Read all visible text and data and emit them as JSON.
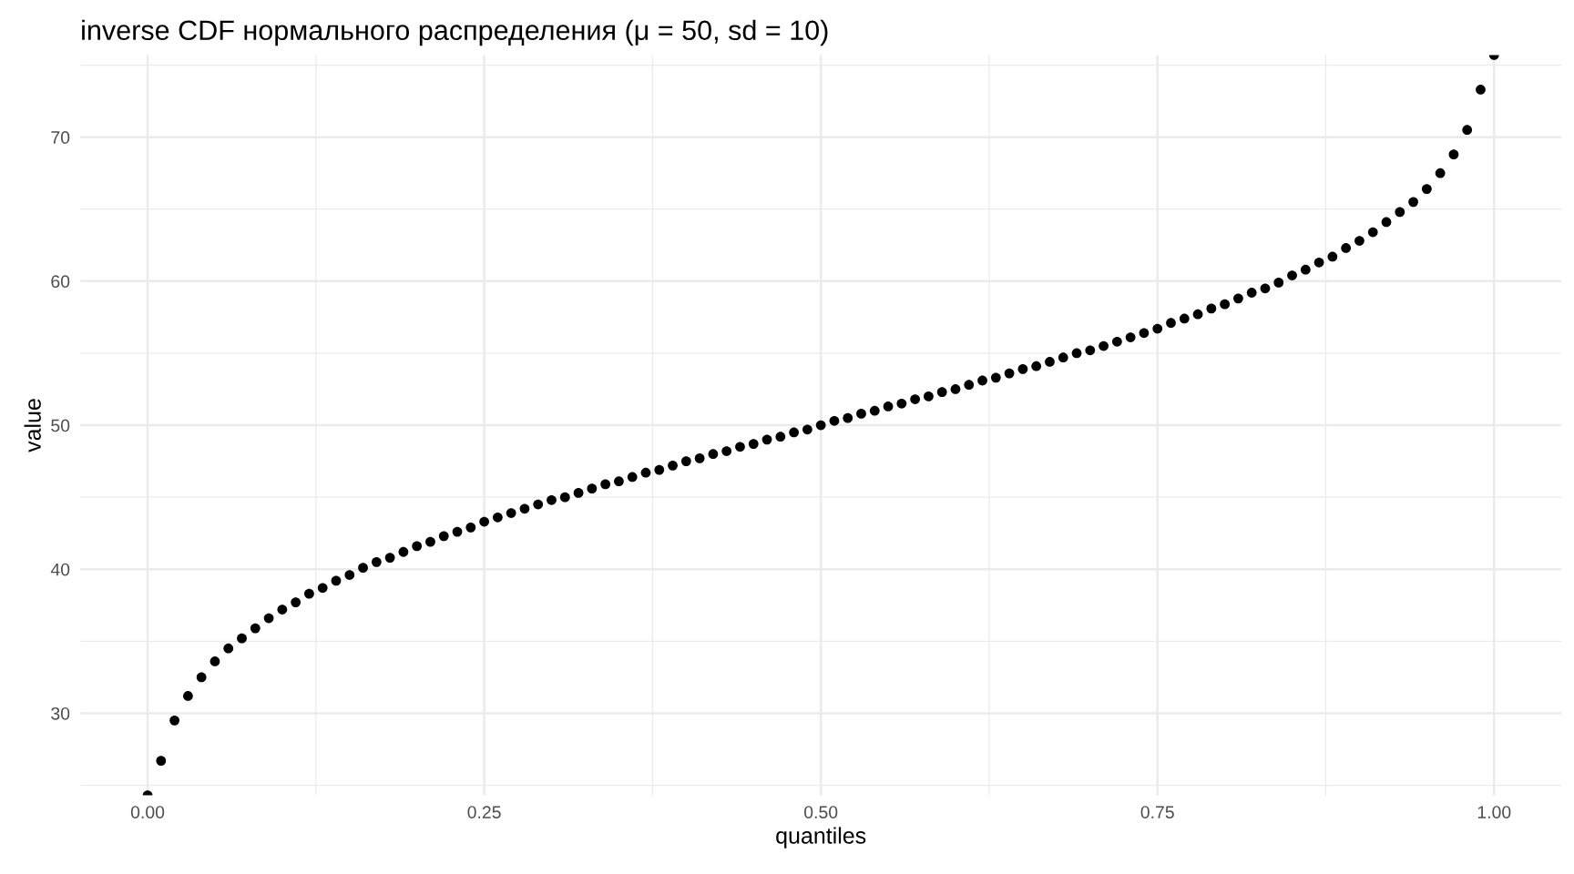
{
  "chart_data": {
    "type": "scatter",
    "title": "inverse CDF нормального распределения (μ = 50, sd = 10)",
    "xlabel": "quantiles",
    "ylabel": "value",
    "x": [
      0,
      0.01,
      0.02,
      0.03,
      0.04,
      0.05,
      0.06,
      0.07,
      0.08,
      0.09,
      0.1,
      0.11,
      0.12,
      0.13,
      0.14,
      0.15,
      0.16,
      0.17,
      0.18,
      0.19,
      0.2,
      0.21,
      0.22,
      0.23,
      0.24,
      0.25,
      0.26,
      0.27,
      0.28,
      0.29,
      0.3,
      0.31,
      0.32,
      0.33,
      0.34,
      0.35,
      0.36,
      0.37,
      0.38,
      0.39,
      0.4,
      0.41,
      0.42,
      0.43,
      0.44,
      0.45,
      0.46,
      0.47,
      0.48,
      0.49,
      0.5,
      0.51,
      0.52,
      0.53,
      0.54,
      0.55,
      0.56,
      0.57,
      0.58,
      0.59,
      0.6,
      0.61,
      0.62,
      0.63,
      0.64,
      0.65,
      0.66,
      0.67,
      0.68,
      0.69,
      0.7,
      0.71,
      0.72,
      0.73,
      0.74,
      0.75,
      0.76,
      0.77,
      0.78,
      0.79,
      0.8,
      0.81,
      0.82,
      0.83,
      0.84,
      0.85,
      0.86,
      0.87,
      0.88,
      0.89,
      0.9,
      0.91,
      0.92,
      0.93,
      0.94,
      0.95,
      0.96,
      0.97,
      0.98,
      0.99,
      1.0
    ],
    "series": [
      {
        "color": "#000000",
        "values": [
          24.3,
          26.7,
          29.5,
          31.2,
          32.5,
          33.6,
          34.5,
          35.2,
          35.9,
          36.6,
          37.2,
          37.7,
          38.3,
          38.7,
          39.2,
          39.6,
          40.1,
          40.5,
          40.8,
          41.2,
          41.6,
          41.9,
          42.3,
          42.6,
          42.9,
          43.3,
          43.6,
          43.9,
          44.2,
          44.5,
          44.8,
          45.0,
          45.3,
          45.6,
          45.9,
          46.1,
          46.4,
          46.7,
          46.9,
          47.2,
          47.5,
          47.7,
          48.0,
          48.2,
          48.5,
          48.7,
          49.0,
          49.2,
          49.5,
          49.7,
          50.0,
          50.3,
          50.5,
          50.8,
          51.0,
          51.3,
          51.5,
          51.8,
          52.0,
          52.3,
          52.5,
          52.8,
          53.1,
          53.3,
          53.6,
          53.9,
          54.1,
          54.4,
          54.7,
          55.0,
          55.2,
          55.5,
          55.8,
          56.1,
          56.4,
          56.7,
          57.1,
          57.4,
          57.7,
          58.1,
          58.4,
          58.8,
          59.2,
          59.5,
          59.9,
          60.4,
          60.8,
          61.3,
          61.7,
          62.3,
          62.8,
          63.4,
          64.1,
          64.8,
          65.5,
          66.4,
          67.5,
          68.8,
          70.5,
          73.3,
          75.7
        ]
      }
    ],
    "xlim": [
      -0.05,
      1.05
    ],
    "ylim": [
      24.3,
      75.7
    ],
    "xticks": [
      {
        "value": 0,
        "label": "0.00"
      },
      {
        "value": 0.25,
        "label": "0.25"
      },
      {
        "value": 0.5,
        "label": "0.50"
      },
      {
        "value": 0.75,
        "label": "0.75"
      },
      {
        "value": 1,
        "label": "1.00"
      }
    ],
    "yticks": [
      30,
      40,
      50,
      60,
      70
    ],
    "grid": true,
    "marker": "circle"
  }
}
